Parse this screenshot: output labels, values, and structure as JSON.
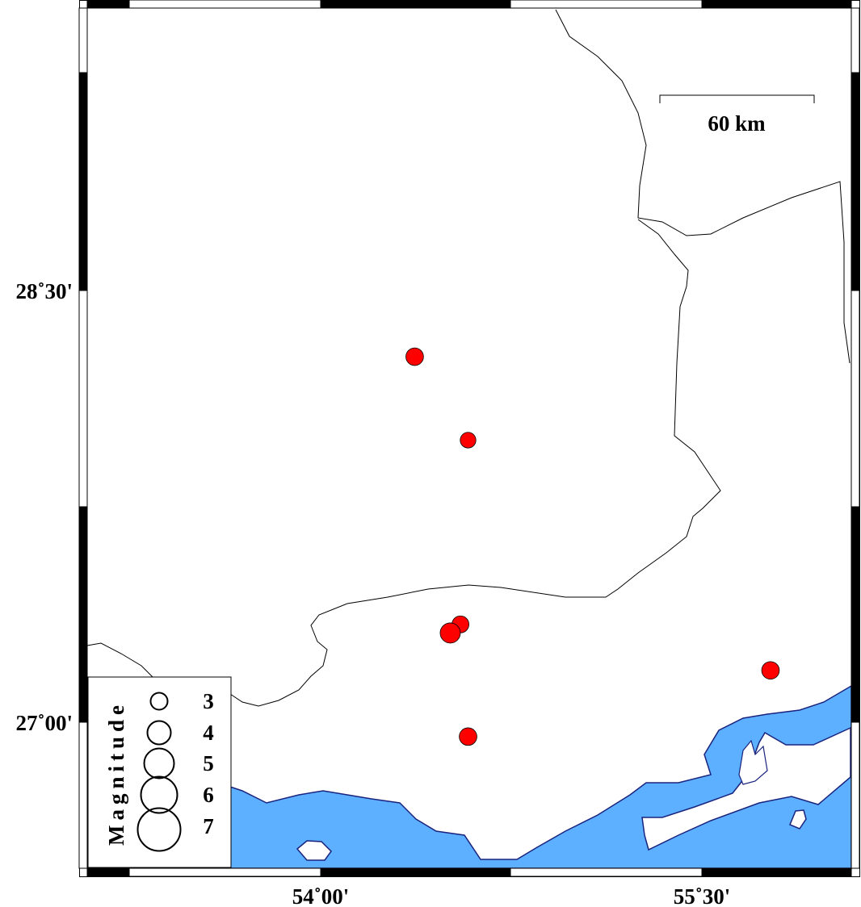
{
  "map": {
    "frame": {
      "lon_ticks": [
        {
          "lon": 54.0,
          "label": "54˚00'"
        },
        {
          "lon": 55.5,
          "label": "55˚30'"
        }
      ],
      "lat_ticks": [
        {
          "lat": 28.5,
          "label": "28˚30'"
        },
        {
          "lat": 27.0,
          "label": "27˚00'"
        }
      ]
    },
    "scale_bar": {
      "label": "60 km"
    },
    "colors": {
      "water": "#5CB0FF",
      "land": "#FFFFFF",
      "coastline": "#1A237E",
      "boundary": "#000000",
      "event": "#FF0000"
    },
    "legend": {
      "title": "Magnitude",
      "items": [
        {
          "mag": 3,
          "label": "3"
        },
        {
          "mag": 4,
          "label": "4"
        },
        {
          "mag": 5,
          "label": "5"
        },
        {
          "mag": 6,
          "label": "6"
        },
        {
          "mag": 7,
          "label": "7"
        }
      ]
    },
    "events": [
      {
        "lon": 54.37,
        "lat": 28.27,
        "mag": 3.1
      },
      {
        "lon": 54.58,
        "lat": 27.98,
        "mag": 2.8
      },
      {
        "lon": 54.55,
        "lat": 27.34,
        "mag": 3.0
      },
      {
        "lon": 54.51,
        "lat": 27.31,
        "mag": 3.5
      },
      {
        "lon": 55.77,
        "lat": 27.18,
        "mag": 3.1
      },
      {
        "lon": 54.58,
        "lat": 26.95,
        "mag": 3.1
      }
    ]
  }
}
